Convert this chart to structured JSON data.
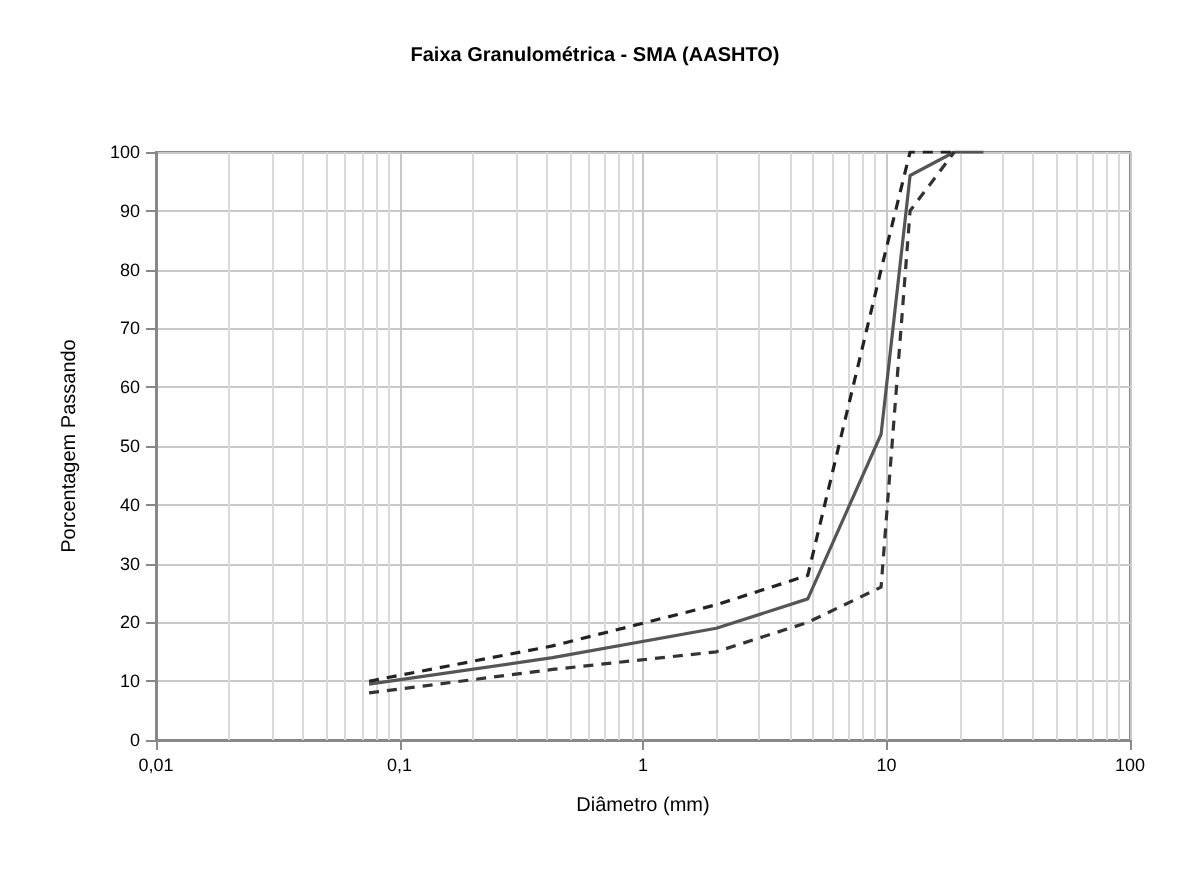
{
  "chart_data": {
    "type": "line",
    "title": "Faixa Granulométrica - SMA (AASHTO)",
    "xlabel": "Diâmetro (mm)",
    "ylabel": "Porcentagem Passando",
    "series": [
      {
        "color": "#555555",
        "line_style": "solid",
        "x": [
          0.075,
          0.425,
          2,
          4.75,
          9.5,
          12.5,
          19,
          25
        ],
        "values": [
          9.5,
          14,
          19,
          24,
          52,
          96,
          100,
          100
        ]
      },
      {
        "color": "#222222",
        "line_style": "dashed",
        "x": [
          0.075,
          0.425,
          2,
          4.75,
          9.5,
          12.5,
          19
        ],
        "values": [
          10,
          16,
          23,
          28,
          80,
          100,
          100
        ]
      },
      {
        "color": "#333333",
        "line_style": "dashed",
        "x": [
          0.075,
          0.425,
          2,
          4.75,
          9.5,
          12.5,
          19
        ],
        "values": [
          8,
          12,
          15,
          20,
          26,
          90,
          100
        ]
      }
    ],
    "log": "x",
    "xlim": [
      0.01,
      100
    ],
    "xticks": [
      {
        "value": 0.01,
        "label": "0,01"
      },
      {
        "value": 0.1,
        "label": "0,1"
      },
      1,
      10,
      100
    ],
    "ylim": [
      0,
      100
    ],
    "yticks": [
      0,
      10,
      20,
      30,
      40,
      50,
      60,
      70,
      80,
      90,
      100
    ],
    "grid": true,
    "marker": "none"
  }
}
